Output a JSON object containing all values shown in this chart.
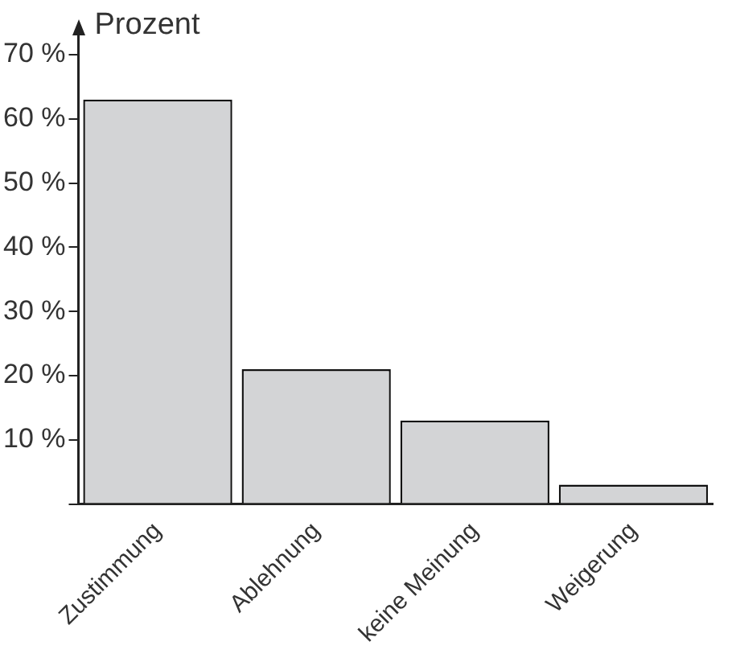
{
  "chart_data": {
    "type": "bar",
    "ylabel": "Prozent",
    "categories": [
      "Zustimmung",
      "Ablehnung",
      "keine Meinung",
      "Weigerung"
    ],
    "values": [
      63,
      21,
      13,
      3
    ],
    "color": "#d3d4d6",
    "ylim": [
      0,
      73
    ],
    "yticks": [
      {
        "value": 0,
        "label": null
      },
      {
        "value": 10,
        "label": "10 %"
      },
      {
        "value": 20,
        "label": "20 %"
      },
      {
        "value": 30,
        "label": "30 %"
      },
      {
        "value": 40,
        "label": "40 %"
      },
      {
        "value": 50,
        "label": "50 %"
      },
      {
        "value": 60,
        "label": "60 %"
      },
      {
        "value": 70,
        "label": "70 %"
      }
    ],
    "grid": false,
    "legend": false
  }
}
